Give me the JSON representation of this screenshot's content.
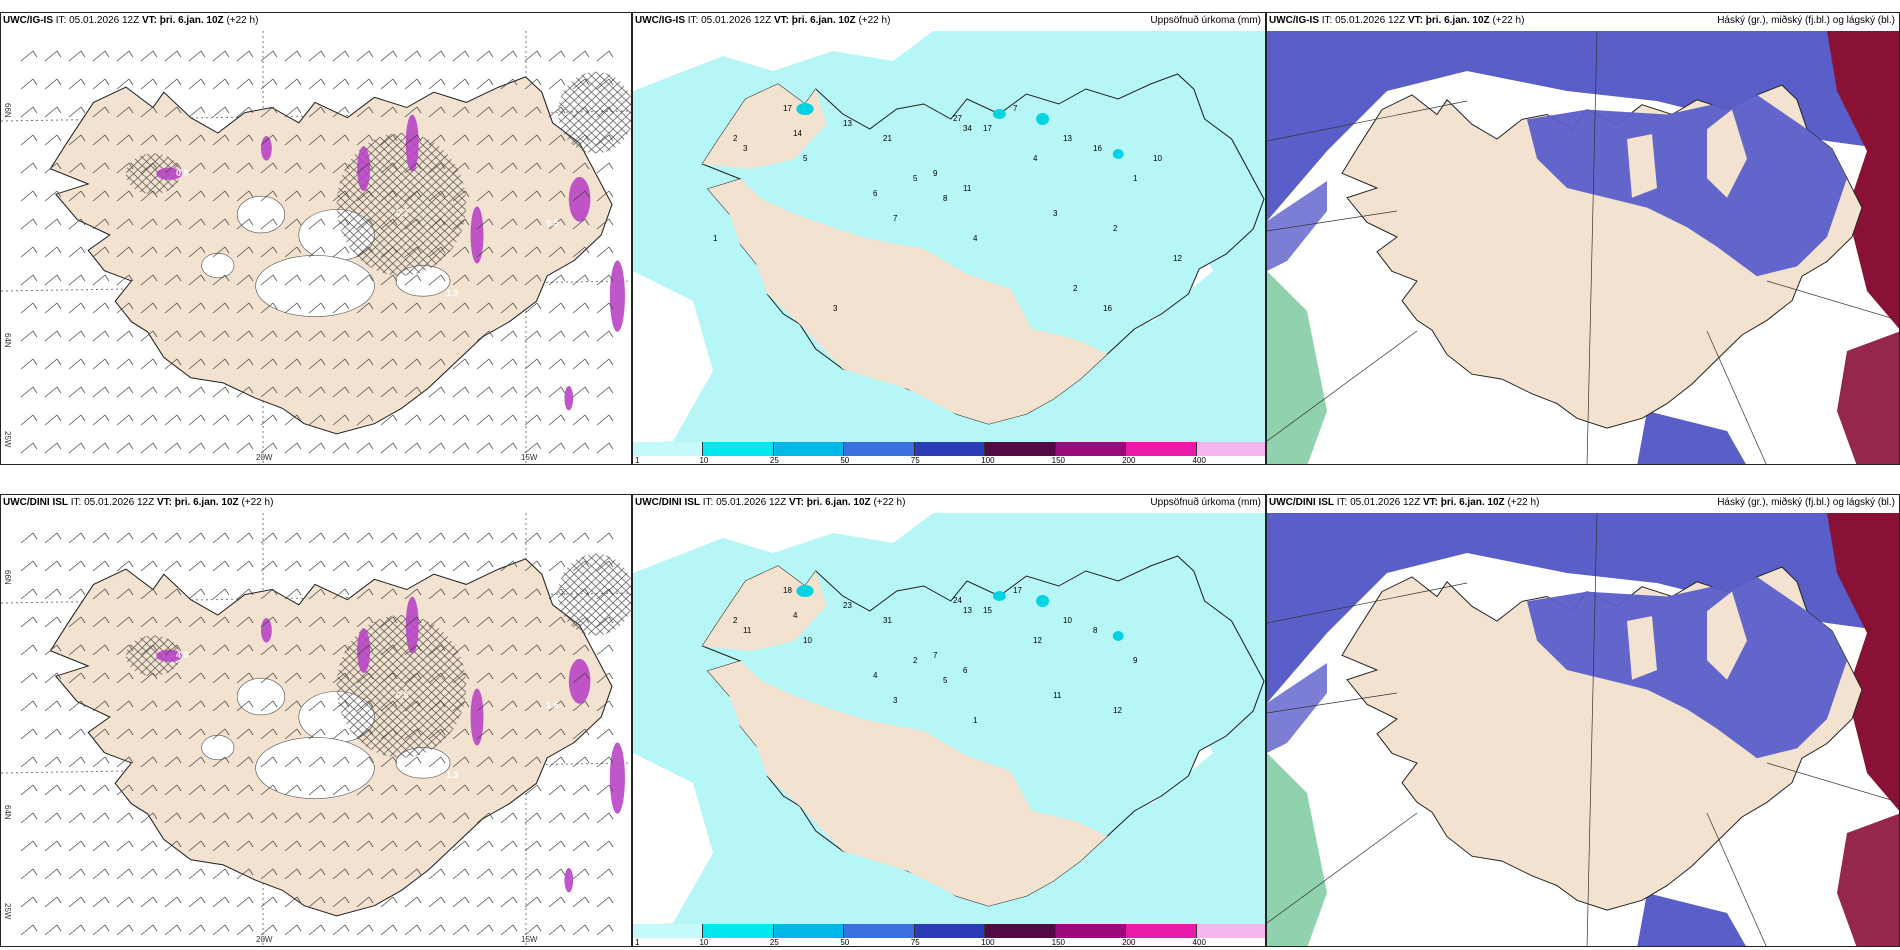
{
  "panels": [
    {
      "id": "p1",
      "model": "UWC/IG-IS",
      "it_label": "IT:",
      "it": "05.01.2026 12Z",
      "vt_label": "VT:",
      "vt": "þri. 6.jan. 10Z",
      "lead": "(+22 h)",
      "right_title": "",
      "kind": "wind",
      "lat_labels": [
        "66N",
        "64N",
        "25W"
      ],
      "lon_labels": [
        "20W",
        "15W"
      ],
      "contour_labels": [
        "0.8",
        "1.9",
        "0.7",
        "0.5",
        "0.3"
      ]
    },
    {
      "id": "p2",
      "model": "UWC/IG-IS",
      "it_label": "IT:",
      "it": "05.01.2026 12Z",
      "vt_label": "VT:",
      "vt": "þri. 6.jan. 10Z",
      "lead": "(+22 h)",
      "right_title": "Uppsöfnuð úrkoma (mm)",
      "kind": "precip",
      "values": [
        "17",
        "14",
        "2",
        "3",
        "5",
        "13",
        "21",
        "27",
        "34",
        "17",
        "7",
        "4",
        "13",
        "16",
        "9",
        "11",
        "8",
        "6",
        "7",
        "5",
        "4",
        "3",
        "2",
        "1",
        "10",
        "12",
        "2",
        "16",
        "3",
        "1"
      ]
    },
    {
      "id": "p3",
      "model": "UWC/IG-IS",
      "it_label": "IT:",
      "it": "05.01.2026 12Z",
      "vt_label": "VT:",
      "vt": "þri. 6.jan. 10Z",
      "lead": "(+22 h)",
      "right_title": "Háský (gr.), miðský (fj.bl.) og lágský (bl.)",
      "kind": "cloud"
    },
    {
      "id": "p4",
      "model": "UWC/DINI ISL",
      "it_label": "IT:",
      "it": "05.01.2026 12Z",
      "vt_label": "VT:",
      "vt": "þri. 6.jan. 10Z",
      "lead": "(+22 h)",
      "right_title": "",
      "kind": "wind",
      "lat_labels": [
        "66N",
        "64N",
        "25W"
      ],
      "lon_labels": [
        "20W",
        "15W"
      ],
      "contour_labels": [
        "4.0",
        "1.3",
        "0.5",
        "1.6"
      ]
    },
    {
      "id": "p5",
      "model": "UWC/DINI ISL",
      "it_label": "IT:",
      "it": "05.01.2026 12Z",
      "vt_label": "VT:",
      "vt": "þri. 6.jan. 10Z",
      "lead": "(+22 h)",
      "right_title": "Uppsöfnuð úrkoma (mm)",
      "kind": "precip",
      "values": [
        "18",
        "4",
        "2",
        "11",
        "10",
        "23",
        "31",
        "24",
        "13",
        "15",
        "17",
        "12",
        "10",
        "8",
        "7",
        "6",
        "5",
        "4",
        "3",
        "2",
        "1",
        "11",
        "12",
        "9"
      ]
    },
    {
      "id": "p6",
      "model": "UWC/DINI ISL",
      "it_label": "IT:",
      "it": "05.01.2026 12Z",
      "vt_label": "VT:",
      "vt": "þri. 6.jan. 10Z",
      "lead": "(+22 h)",
      "right_title": "Háský (gr.), miðský (fj.bl.) og lágský (bl.)",
      "kind": "cloud"
    }
  ],
  "colorbar": {
    "labels": [
      "1",
      "10",
      "25",
      "50",
      "75",
      "100",
      "150",
      "200",
      "400"
    ],
    "colors": [
      "#c6fafa",
      "#00e8ee",
      "#00b8e8",
      "#3a6fe0",
      "#2b3cb8",
      "#520a45",
      "#9b0a7a",
      "#e81aa8",
      "#f5b4ee"
    ]
  },
  "colors": {
    "land": "#f2e2cf",
    "sea_precip": "#b7f6f6",
    "cloud_blue": "#5a5ec9",
    "cloud_red": "#8a1136",
    "cloud_green": "#5fbf8a",
    "purple": "#b845c4"
  }
}
